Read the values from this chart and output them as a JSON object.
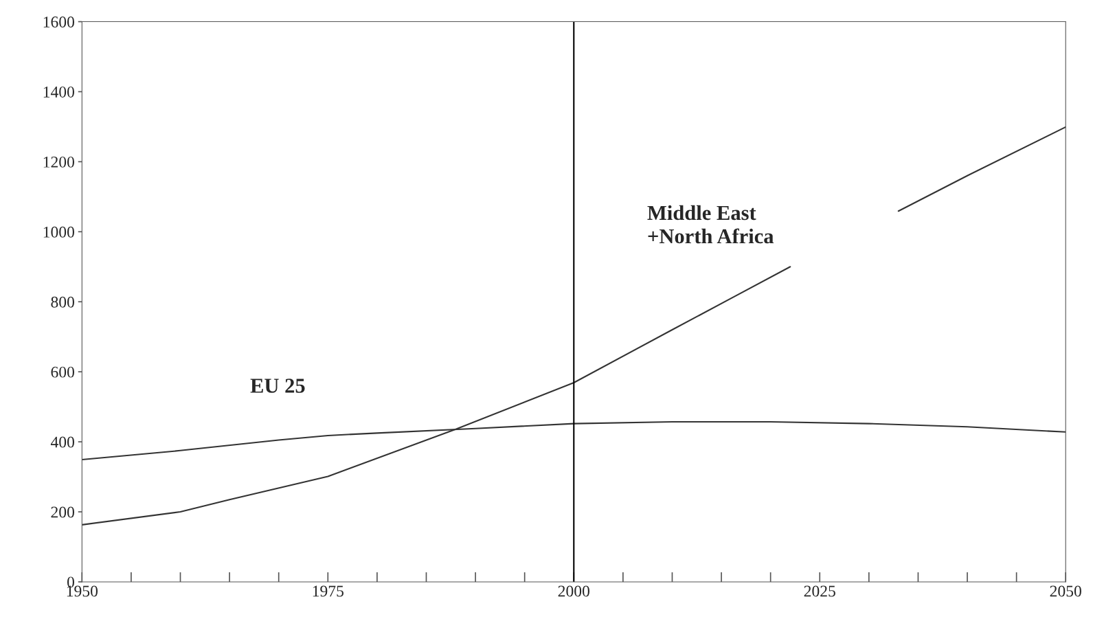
{
  "chart_data": {
    "type": "line",
    "series": [
      {
        "name": "EU 25",
        "color": "#333333",
        "x": [
          1950,
          1960,
          1970,
          1975,
          1980,
          1990,
          2000,
          2010,
          2020,
          2030,
          2040,
          2050
        ],
        "values": [
          349,
          375,
          405,
          418,
          425,
          438,
          452,
          457,
          457,
          452,
          443,
          428
        ]
      },
      {
        "name": "Middle East\n+North Africa",
        "color": "#333333",
        "x": [
          1950,
          1960,
          1965,
          1975,
          1988,
          2000,
          2010,
          2016,
          2022,
          2026,
          2033,
          2040,
          2050
        ],
        "values": [
          163,
          200,
          235,
          301,
          436,
          569,
          720,
          810,
          900,
          null,
          1059,
          1160,
          1299
        ]
      }
    ],
    "xlim": [
      1950,
      2050
    ],
    "ylim": [
      0,
      1600
    ],
    "xticks": [
      1950,
      {
        "value": 1955,
        "label": null
      },
      {
        "value": 1960,
        "label": null
      },
      {
        "value": 1965,
        "label": null
      },
      {
        "value": 1970,
        "label": null
      },
      1975,
      {
        "value": 1980,
        "label": null
      },
      {
        "value": 1985,
        "label": null
      },
      {
        "value": 1990,
        "label": null
      },
      {
        "value": 1995,
        "label": null
      },
      2000,
      {
        "value": 2005,
        "label": null
      },
      {
        "value": 2010,
        "label": null
      },
      {
        "value": 2015,
        "label": null
      },
      {
        "value": 2020,
        "label": null
      },
      2025,
      {
        "value": 2030,
        "label": null
      },
      {
        "value": 2035,
        "label": null
      },
      {
        "value": 2040,
        "label": null
      },
      {
        "value": 2045,
        "label": null
      },
      2050
    ],
    "yticks": [
      0,
      200,
      400,
      600,
      800,
      1000,
      1200,
      1400,
      1600
    ],
    "ref_lines": [
      {
        "axis": "x",
        "value": 2000,
        "color": "#000000"
      }
    ],
    "grid": false,
    "legend": false
  }
}
